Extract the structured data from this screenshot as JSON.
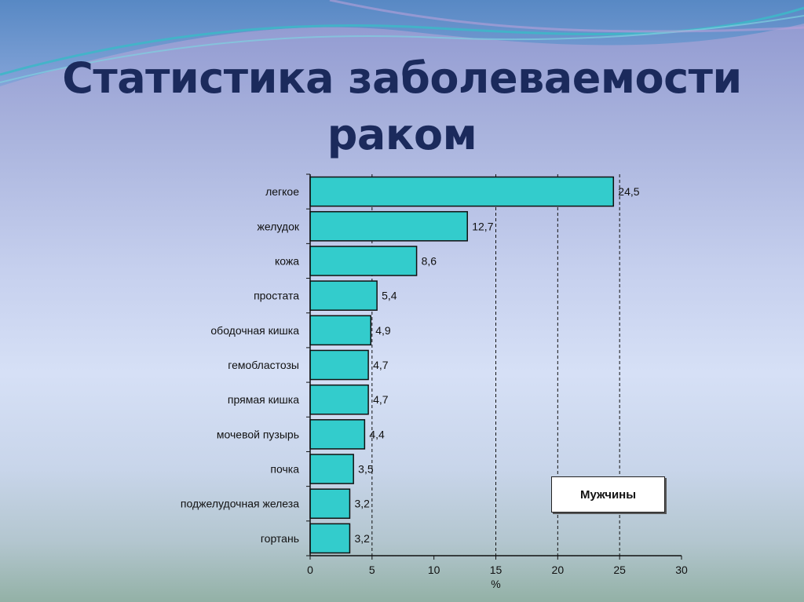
{
  "slide": {
    "title_line1": "Статистика заболеваемости",
    "title_line2": "раком"
  },
  "chart_data": {
    "type": "bar",
    "orientation": "horizontal",
    "categories": [
      "легкое",
      "желудок",
      "кожа",
      "простата",
      "ободочная кишка",
      "гемобластозы",
      "прямая кишка",
      "мочевой пузырь",
      "почка",
      "поджелудочная железа",
      "гортань"
    ],
    "values": [
      24.5,
      12.7,
      8.6,
      5.4,
      4.9,
      4.7,
      4.7,
      4.4,
      3.5,
      3.2,
      3.2
    ],
    "value_labels": [
      "24,5",
      "12,7",
      "8,6",
      "5,4",
      "4,9",
      "4,7",
      "4,7",
      "4,4",
      "3,5",
      "3,2",
      "3,2"
    ],
    "xlim": [
      0,
      30
    ],
    "xticks": [
      0,
      5,
      10,
      15,
      20,
      25,
      30
    ],
    "xlabel": "%",
    "grid": "dashed vertical at 5, 15, 20, 25",
    "bar_color": "#33cccc",
    "legend": {
      "label": "Мужчины",
      "placement": "bottom-right"
    }
  }
}
